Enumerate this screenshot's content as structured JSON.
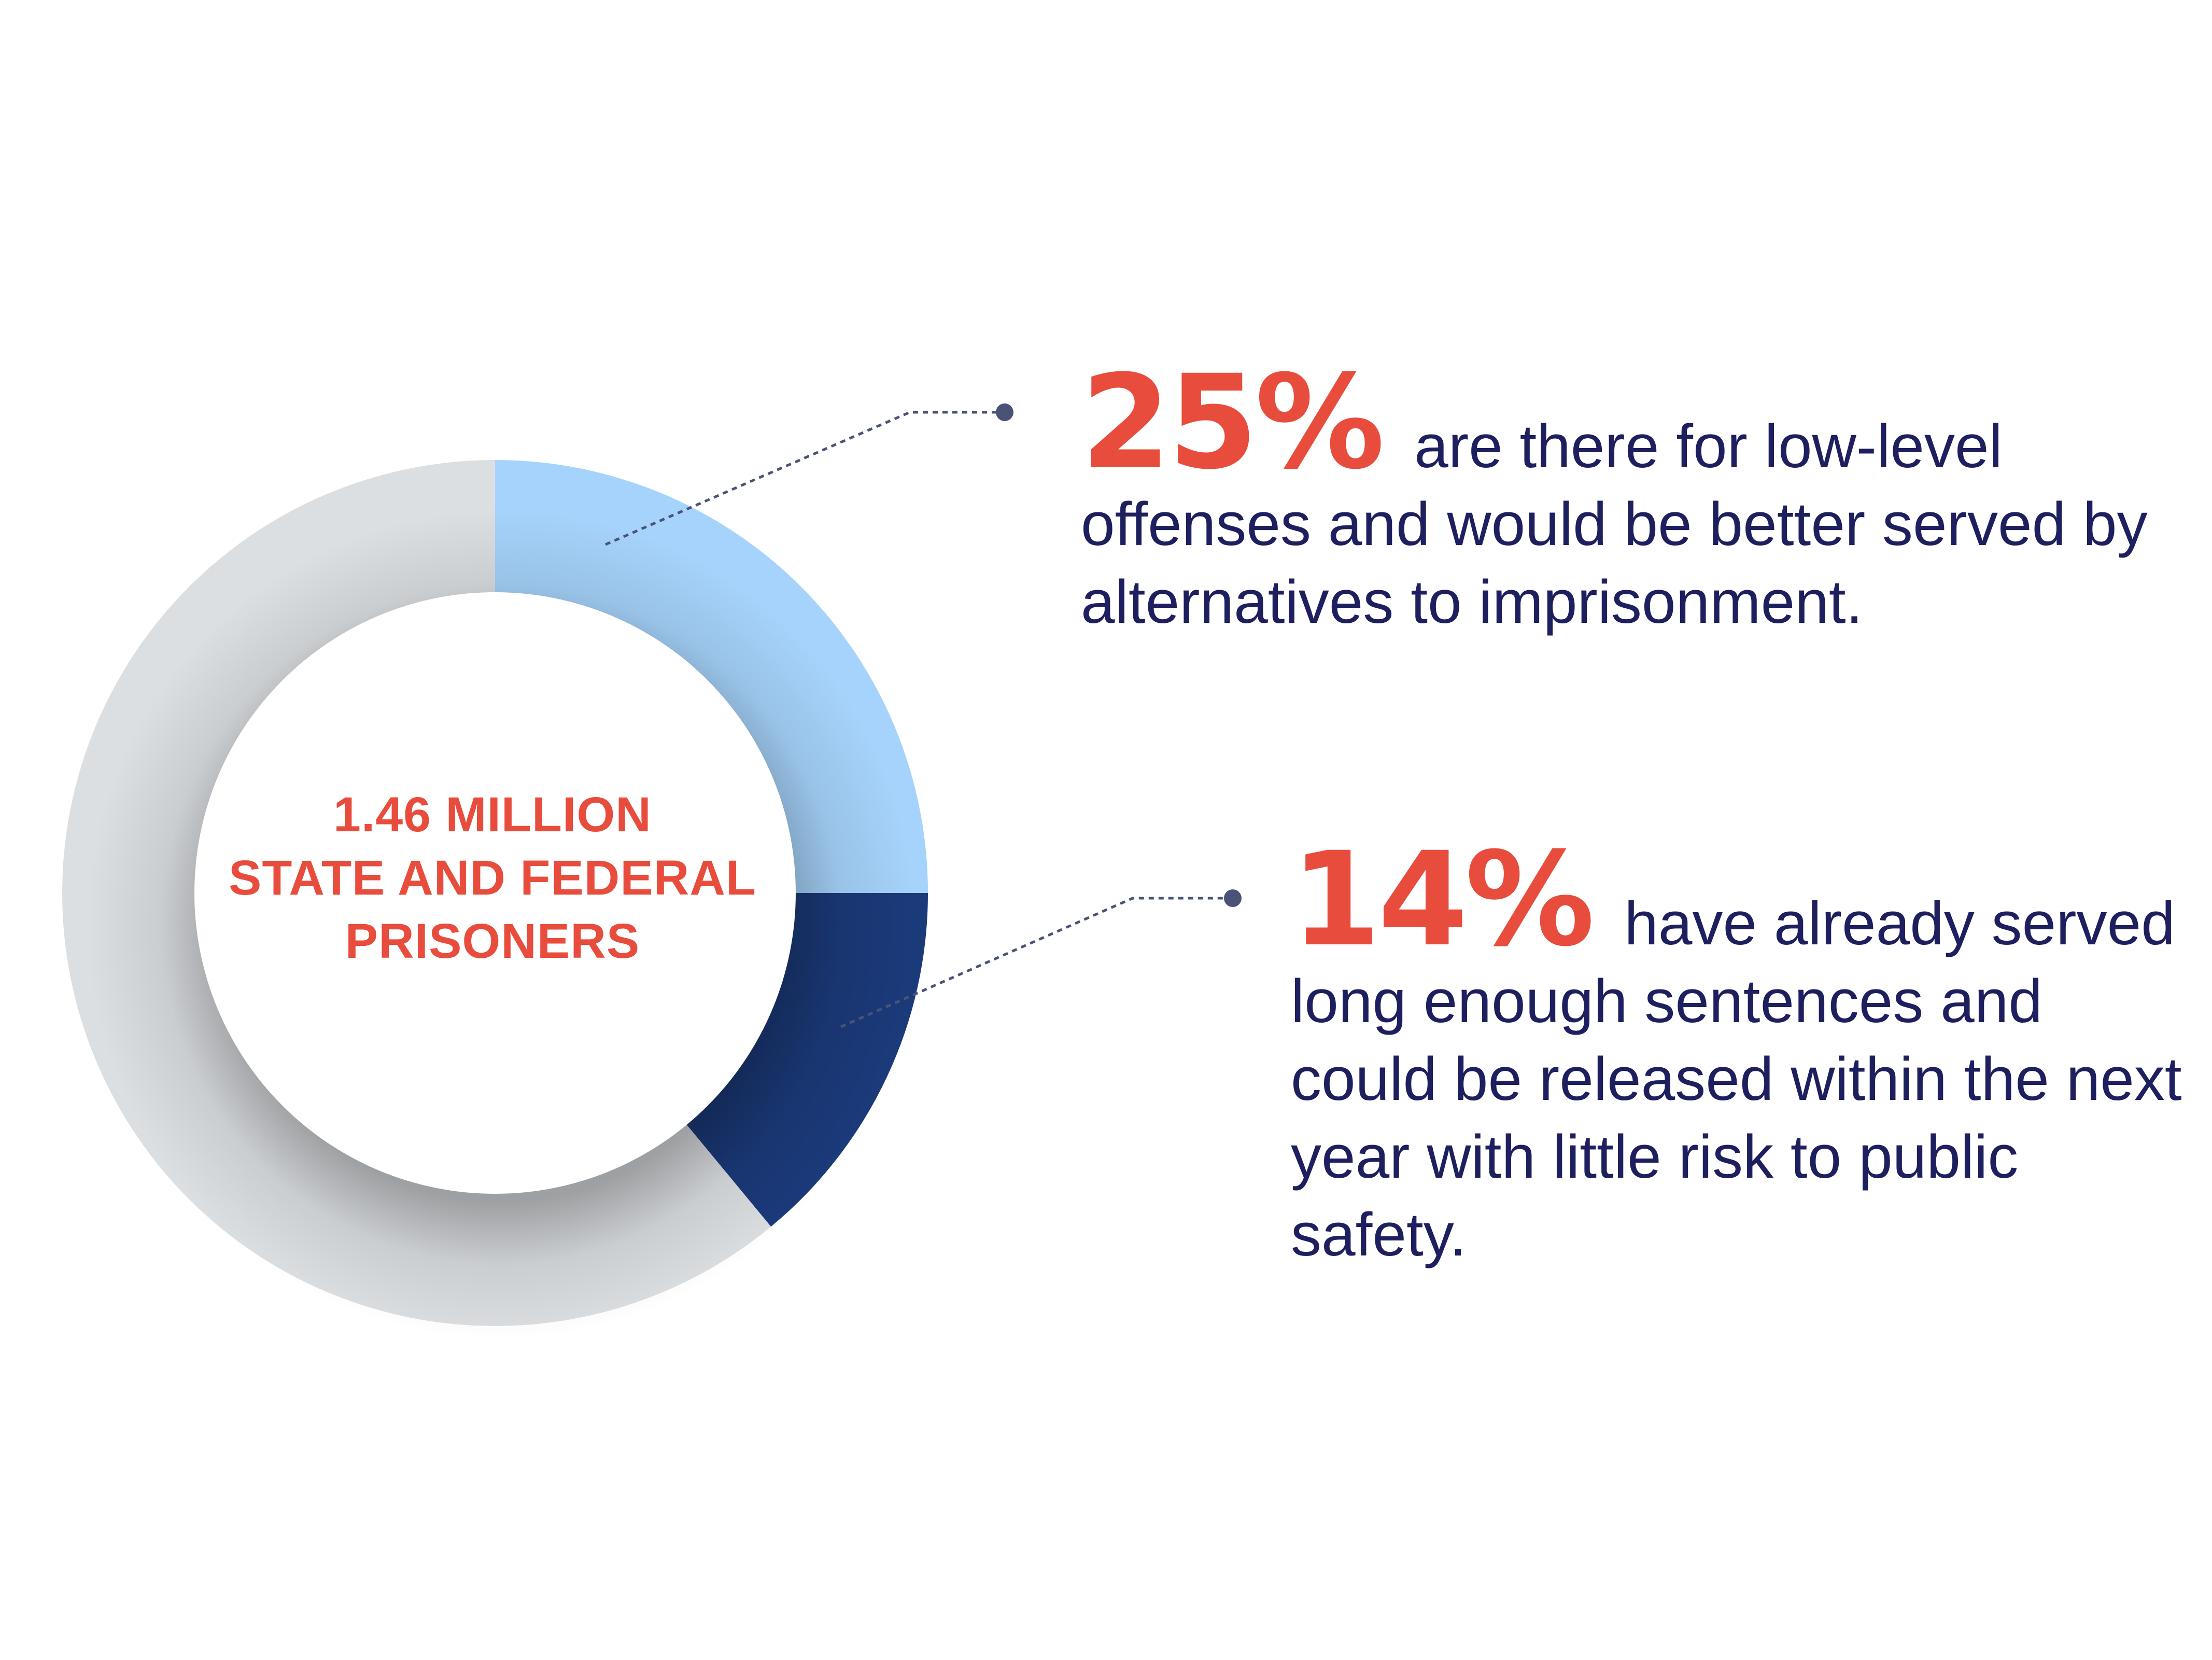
{
  "colors": {
    "accent": "#e84c3d",
    "text": "#1d1f5e",
    "series_1": "#a6d3fb",
    "series_2": "#1b3a7a",
    "remainder": "#dcdfe2",
    "leader": "#4a5377"
  },
  "center": {
    "lines": [
      "1.46 MILLION",
      "STATE AND FEDERAL",
      "PRISONERS"
    ]
  },
  "callouts": [
    {
      "percent": "25%",
      "text": "are there for low-level offenses and would be better served by alternatives to imprisonment."
    },
    {
      "percent": "14%",
      "text": "have already served long enough sentences and could be released within the next year with little risk to public safety."
    }
  ],
  "chart_data": {
    "type": "pie",
    "donut": true,
    "start": "12 o'clock",
    "direction": "clockwise",
    "slices": [
      {
        "label": "25%",
        "value": 25,
        "color": "#a6d3fb"
      },
      {
        "label": "14%",
        "value": 14,
        "color": "#1b3a7a"
      },
      {
        "label": "",
        "value": 61,
        "color": "#dcdfe2"
      }
    ]
  }
}
